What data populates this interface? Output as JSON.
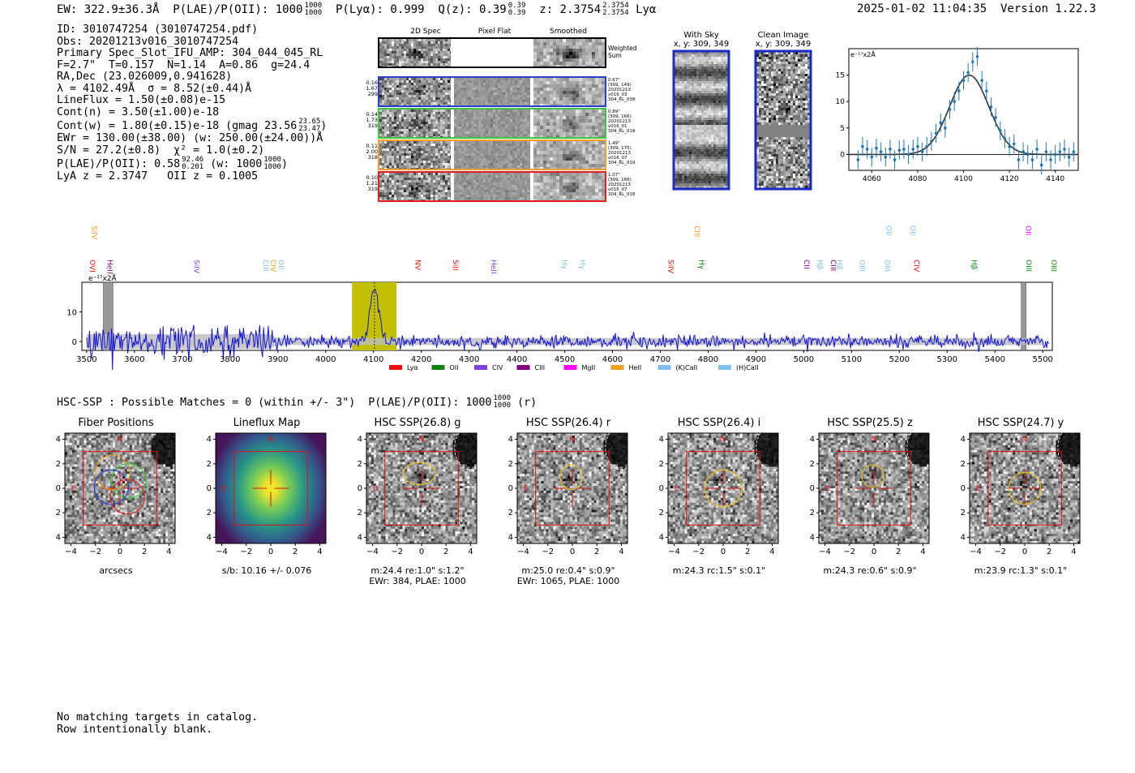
{
  "header": {
    "left": "EW: 322.9±36.3Å  P(LAE)/P(OII): 1000",
    "plae_frac": [
      "1000",
      "1000"
    ],
    "plya": "P(Lyα): 0.999",
    "qz": "Q(z): 0.39",
    "qz_frac": [
      "0.39",
      "0.39"
    ],
    "z": "z: 2.3754",
    "z_frac": [
      "2.3754",
      "2.3754"
    ],
    "line_name": "Lyα",
    "right": "2025-01-02 11:04:35  Version 1.22.3"
  },
  "info": {
    "id": "ID: 3010747254 (3010747254.pdf)",
    "obs": "Obs: 20201213v016_3010747254",
    "primary": "Primary Spec_Slot_IFU_AMP: 304_044_045_RL",
    "fiber": "F=2.7\"  T=0.157  N=1.14  A=0.86  g=24.4",
    "radec": "RA,Dec (23.026009,0.941628)",
    "lambda": "λ = 4102.49Å  σ = 8.52(±0.44)Å",
    "lineflux": "LineFlux = 1.50(±0.08)e-15",
    "contn": "Cont(n) = 3.50(±1.00)e-18",
    "contw": "Cont(w) = 1.80(±0.15)e-18 (gmag 23.56",
    "contw_frac": [
      "23.65",
      "23.47"
    ],
    "ewr": "EWr = 130.00(±38.00) (w: 250.00(±24.00))Å",
    "sn": "S/N = 27.2(±0.8)  χ² = 1.0(±0.2)",
    "plae": "P(LAE)/P(OII): 0.58",
    "plae_frac": [
      "92.46",
      "0.201"
    ],
    "plae_w": "(w: 1000",
    "plae_w_frac": [
      "1000",
      "1000"
    ],
    "lya_z": "LyA z = 2.3747   OII z = 0.1005"
  },
  "stamps": {
    "titles": [
      "2D Spec",
      "Pixel Flat",
      "Smoothed"
    ],
    "weighted_sum": "Weighted\nSum",
    "rows": [
      {
        "left": [
          "0.16",
          "1.67",
          "299"
        ],
        "right": "0.67\"\n(309, 149)\n20201213\nv016_03\n304_RL_038",
        "color": "#2a3fd0"
      },
      {
        "left": [
          "0.14",
          "1.73",
          "319"
        ],
        "right": "0.89\"\n(309, 166)\n20201213\nv016_01\n304_RL_018",
        "color": "#3cc83c"
      },
      {
        "left": [
          "0.11",
          "2.00",
          "318"
        ],
        "right": "1.49\"\n(309, 175)\n20201213\nv016_07\n304_RL_019",
        "color": "#f0a030"
      },
      {
        "left": [
          "0.10",
          "1.21",
          "319"
        ],
        "right": "1.07\"\n(309, 166)\n20201213\nv016_07\n304_RL_018",
        "color": "#e02020"
      }
    ]
  },
  "sky": {
    "with_sky_title": "With Sky",
    "with_sky_xy": "x, y: 309, 349",
    "clean_title": "Clean Image",
    "clean_xy": "x, y: 309, 349"
  },
  "zoom_chart": {
    "unit_label": "e⁻¹⁷x2Å",
    "yticks": [
      "0",
      "5",
      "10",
      "15"
    ],
    "xticks": [
      "4060",
      "4080",
      "4100",
      "4120",
      "4140"
    ]
  },
  "chart_data": [
    {
      "type": "scatter",
      "title": "",
      "xlabel": "",
      "ylabel": "e⁻¹⁷x2Å",
      "xlim": [
        4050,
        4150
      ],
      "ylim": [
        -3,
        20
      ],
      "fit_center": 4102.49,
      "fit_sigma": 8.52,
      "fit_amp": 15,
      "x": [
        4054,
        4056,
        4058,
        4060,
        4062,
        4064,
        4066,
        4068,
        4070,
        4072,
        4074,
        4076,
        4078,
        4080,
        4082,
        4084,
        4086,
        4088,
        4090,
        4092,
        4094,
        4096,
        4098,
        4100,
        4102,
        4104,
        4106,
        4108,
        4110,
        4112,
        4114,
        4116,
        4118,
        4120,
        4122,
        4124,
        4126,
        4128,
        4130,
        4132,
        4134,
        4136,
        4138,
        4140,
        4142,
        4144,
        4146,
        4148
      ],
      "y": [
        -1,
        1.5,
        1,
        -0.5,
        1.2,
        0.5,
        -0.5,
        1,
        -1,
        0.8,
        1,
        0,
        1,
        1.5,
        0.5,
        1.5,
        2.5,
        4,
        6,
        5,
        8.5,
        10,
        12,
        14,
        15.5,
        17.5,
        18.5,
        14,
        12,
        9,
        7,
        4.5,
        3,
        1.5,
        2,
        -1,
        0.5,
        0,
        -1,
        1,
        -2,
        0.5,
        -1,
        0,
        0.5,
        1,
        -0.5,
        0.5
      ],
      "yerr": 1.8
    },
    {
      "type": "line",
      "title": "",
      "xlabel": "",
      "ylabel": "e⁻¹⁷x2Å",
      "xlim": [
        3490,
        5520
      ],
      "ylim": [
        -3,
        20
      ],
      "xticks": [
        "3500",
        "3600",
        "3700",
        "3800",
        "3900",
        "4000",
        "4100",
        "4200",
        "4300",
        "4400",
        "4500",
        "4600",
        "4700",
        "4800",
        "4900",
        "5000",
        "5100",
        "5200",
        "5300",
        "5400",
        "5500"
      ],
      "yticks": [
        "0",
        "10"
      ],
      "peak_x": 4102,
      "peak_y": 18.5,
      "highlight": [
        4055,
        4148
      ],
      "masked": [
        [
          3535,
          3555
        ],
        [
          5455,
          5465
        ]
      ],
      "legend": [
        {
          "name": "Lyα",
          "color": "#e81010"
        },
        {
          "name": "OII",
          "color": "#108010"
        },
        {
          "name": "CIV",
          "color": "#8040e0"
        },
        {
          "name": "CIII",
          "color": "#800080"
        },
        {
          "name": "MgII",
          "color": "#ff00ff"
        },
        {
          "name": "HeII",
          "color": "#f0a020"
        },
        {
          "name": "(K)CaII",
          "color": "#80c0f0"
        },
        {
          "name": "(H)CaII",
          "color": "#80c0f0"
        }
      ],
      "line_labels": [
        {
          "label": "OVI",
          "x": 3502,
          "color": "#e81010",
          "row": 1
        },
        {
          "label": "SiIV",
          "x": 3506,
          "color": "#f0a020",
          "row": 0
        },
        {
          "label": "HeII",
          "x": 3538,
          "color": "#800080",
          "row": 1
        },
        {
          "label": "SiIV",
          "x": 3720,
          "color": "#8040e0",
          "row": 1
        },
        {
          "label": "CIII",
          "x": 3865,
          "color": "#80c0f0",
          "row": 1
        },
        {
          "label": "CIV",
          "x": 3880,
          "color": "#f0a020",
          "row": 1
        },
        {
          "label": "OII",
          "x": 3897,
          "color": "#80c0f0",
          "row": 1
        },
        {
          "label": "NV",
          "x": 4183,
          "color": "#e81010",
          "row": 1
        },
        {
          "label": "SiII",
          "x": 4262,
          "color": "#e81010",
          "row": 1
        },
        {
          "label": "HeII",
          "x": 4341,
          "color": "#8040e0",
          "row": 1
        },
        {
          "label": "Hγ",
          "x": 4490,
          "color": "#80c0f0",
          "row": 1
        },
        {
          "label": "Hγ",
          "x": 4527,
          "color": "#80c0f0",
          "row": 1
        },
        {
          "label": "SiIV",
          "x": 4712,
          "color": "#e81010",
          "row": 1
        },
        {
          "label": "CIII",
          "x": 4767,
          "color": "#f0a020",
          "row": 0
        },
        {
          "label": "Hγ",
          "x": 4776,
          "color": "#108010",
          "row": 1
        },
        {
          "label": "CII",
          "x": 4996,
          "color": "#800080",
          "row": 1
        },
        {
          "label": "Hβ",
          "x": 5024,
          "color": "#80c0f0",
          "row": 1
        },
        {
          "label": "CIII",
          "x": 5052,
          "color": "#800080",
          "row": 1
        },
        {
          "label": "Hβ",
          "x": 5065,
          "color": "#80c0f0",
          "row": 1
        },
        {
          "label": "OIII",
          "x": 5112,
          "color": "#80c0f0",
          "row": 1
        },
        {
          "label": "OII",
          "x": 5168,
          "color": "#80c0f0",
          "row": 0
        },
        {
          "label": "OIII",
          "x": 5165,
          "color": "#80c0f0",
          "row": 1
        },
        {
          "label": "OII",
          "x": 5218,
          "color": "#80c0f0",
          "row": 0
        },
        {
          "label": "CIV",
          "x": 5226,
          "color": "#e81010",
          "row": 1
        },
        {
          "label": "Hβ",
          "x": 5346,
          "color": "#108010",
          "row": 1
        },
        {
          "label": "OII",
          "x": 5460,
          "color": "#ff00ff",
          "row": 0
        },
        {
          "label": "OIII",
          "x": 5461,
          "color": "#108010",
          "row": 1
        },
        {
          "label": "OIII",
          "x": 5513,
          "color": "#108010",
          "row": 1
        }
      ]
    }
  ],
  "hsc": {
    "summary": "HSC-SSP : Possible Matches = 0 (within +/- 3\")  P(LAE)/P(OII): 1000",
    "summary_frac": [
      "1000",
      "1000"
    ],
    "summary_tail": "(r)",
    "ticks": [
      "−4",
      "−2",
      "0",
      "2",
      "4"
    ],
    "north": "N",
    "east": "E",
    "panels": [
      {
        "title": "Fiber Positions",
        "caption": [
          "arcsecs"
        ],
        "kind": "fiber"
      },
      {
        "title": "Lineflux Map",
        "caption": [
          "s/b: 10.16 +/- 0.076"
        ],
        "kind": "flux"
      },
      {
        "title": "HSC SSP(26.8) g",
        "caption": [
          "m:24.4  re:1.0\"  s:1.2\"",
          "EWr: 384, PLAE: 1000"
        ],
        "kind": "img",
        "ell": [
          -0.2,
          1.2,
          1.3,
          0.9
        ],
        "hole": [
          -0.1,
          0.9
        ]
      },
      {
        "title": "HSC SSP(26.4) r",
        "caption": [
          "m:25.0  re:0.4\"  s:0.9\"",
          "EWr: 1065, PLAE: 1000"
        ],
        "kind": "img",
        "ell": [
          -0.1,
          0.9,
          0.9,
          1.0
        ],
        "hole": [
          -0.2,
          0.6
        ]
      },
      {
        "title": "HSC SSP(26.4) i",
        "caption": [
          "m:24.3 rc:1.5\"  s:0.1\""
        ],
        "kind": "img",
        "ell": [
          0,
          0,
          1.5,
          1.5
        ],
        "hole": [
          -0.5,
          0.8
        ]
      },
      {
        "title": "HSC SSP(25.5) z",
        "caption": [
          "m:24.3  re:0.6\"  s:0.9\""
        ],
        "kind": "img",
        "ell": [
          -0.1,
          1.0,
          0.9,
          0.9
        ],
        "hole": [
          0,
          1.1
        ]
      },
      {
        "title": "HSC SSP(24.7) y",
        "caption": [
          "m:23.9 rc:1.3\"  s:0.1\""
        ],
        "kind": "img",
        "ell": [
          0,
          0,
          1.3,
          1.3
        ],
        "hole": [
          0,
          0.7
        ]
      }
    ]
  },
  "footer": {
    "line1": "No matching targets in catalog.",
    "line2": "Row intentionally blank."
  }
}
